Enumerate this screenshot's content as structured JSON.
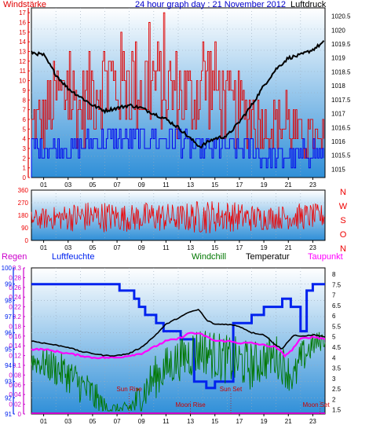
{
  "colors": {
    "wind": "#e00000",
    "gust": "#e00000",
    "wind_avg": "#0000ee",
    "pressure": "#000000",
    "direction": "#ee0000",
    "humidity": "#0022ee",
    "rain": "#cc00cc",
    "windchill": "#007700",
    "temperature": "#000000",
    "dewpoint": "#ff00ff",
    "title": "#0000cc",
    "panel_top": "#ffffff",
    "panel_bottom": "#2f8fd8"
  },
  "chart_data": [
    {
      "type": "line",
      "title": "24 hour graph day : 21 November 2012",
      "left_axis_label": "Windstärke",
      "right_axis_label": "Luftdruck",
      "x_ticks": [
        "01",
        "03",
        "05",
        "07",
        "09",
        "11",
        "13",
        "15",
        "17",
        "19",
        "21",
        "23"
      ],
      "left_ticks": [
        "0",
        "1",
        "2",
        "3",
        "4",
        "5",
        "6",
        "7",
        "8",
        "9",
        "10",
        "11",
        "12",
        "13",
        "14",
        "15",
        "16",
        "17"
      ],
      "left_range": [
        0,
        17.5
      ],
      "right_ticks": [
        "1015",
        "1015.5",
        "1016",
        "1016.5",
        "1017",
        "1017.5",
        "1018",
        "1018.5",
        "1019",
        "1019.5",
        "1020",
        "1020.5"
      ],
      "right_range": [
        1014.7,
        1020.8
      ],
      "x_range": [
        0,
        24
      ],
      "series": [
        {
          "key": "pressure",
          "axis": "right",
          "x": [
            0,
            1,
            2,
            3,
            4,
            5,
            6,
            7,
            8,
            9,
            10,
            11,
            12,
            13,
            13.8,
            14.5,
            15,
            16,
            17,
            18,
            19,
            20,
            21,
            22,
            23,
            24
          ],
          "y": [
            1019.2,
            1019.1,
            1018.4,
            1017.9,
            1017.6,
            1017.3,
            1017.1,
            1017.2,
            1017.3,
            1017.2,
            1017.0,
            1016.8,
            1016.5,
            1016.1,
            1015.8,
            1016.0,
            1016.1,
            1016.2,
            1016.7,
            1017.3,
            1018.0,
            1018.6,
            1019.0,
            1019.1,
            1019.3,
            1019.6
          ]
        },
        {
          "key": "wind_avg",
          "axis": "left",
          "x": [
            0,
            1,
            2,
            3,
            4,
            5,
            6,
            7,
            8,
            9,
            10,
            11,
            12,
            13,
            14,
            15,
            16,
            17,
            18,
            19,
            20,
            21,
            22,
            23,
            24
          ],
          "y": [
            3,
            3,
            3,
            3,
            3,
            4,
            4,
            4,
            4,
            4,
            4,
            4,
            4,
            3,
            3,
            3,
            3,
            3,
            3,
            2,
            2,
            2,
            2,
            3,
            2
          ]
        },
        {
          "key": "gust",
          "axis": "left",
          "x": [
            0,
            1,
            2,
            3,
            4,
            5,
            6,
            7,
            8,
            9,
            10,
            11,
            12,
            13,
            14,
            15,
            16,
            17,
            18,
            19,
            20,
            21,
            22,
            23,
            24
          ],
          "y": [
            8,
            9,
            12,
            13,
            10,
            14,
            15,
            14,
            15,
            14,
            15,
            13,
            13,
            12,
            15,
            14,
            11,
            10,
            10,
            8,
            8,
            8,
            6,
            6,
            4
          ]
        }
      ]
    },
    {
      "type": "line",
      "right_axis_label": [
        "N",
        "W",
        "S",
        "O",
        "N"
      ],
      "left_ticks": [
        "0",
        "90",
        "180",
        "270",
        "360"
      ],
      "left_range": [
        0,
        360
      ],
      "x_ticks": [
        "01",
        "03",
        "05",
        "07",
        "09",
        "11",
        "13",
        "15",
        "17",
        "19",
        "21",
        "23"
      ],
      "x_range": [
        0,
        24
      ],
      "series": [
        {
          "key": "direction",
          "x": [
            0,
            2,
            4,
            6,
            8,
            10,
            12,
            14,
            16,
            18,
            20,
            22,
            24
          ],
          "y": [
            150,
            160,
            170,
            170,
            160,
            170,
            160,
            170,
            175,
            160,
            165,
            170,
            175
          ],
          "spread": [
            50,
            60,
            80,
            80,
            70,
            80,
            70,
            90,
            80,
            70,
            60,
            70,
            60
          ]
        }
      ]
    },
    {
      "type": "line",
      "labels": {
        "rain": "Regen",
        "humidity": "Luftfeuchte",
        "windchill": "Windchill",
        "temperature": "Temperatur",
        "dewpoint": "Taupunkt"
      },
      "rain_ticks": [
        "0",
        "0.02",
        "0.04",
        "0.06",
        "0.08",
        "0.1",
        "0.12",
        "0.14",
        "0.16",
        "0.18",
        "0.2",
        "0.22",
        "0.24",
        "0.26",
        "0.28",
        "0.3"
      ],
      "rain_range": [
        0,
        0.3
      ],
      "humidity_ticks": [
        "91",
        "92",
        "93",
        "94",
        "95",
        "96",
        "97",
        "98",
        "99",
        "100"
      ],
      "humidity_range": [
        91,
        100
      ],
      "temp_ticks": [
        "1.5",
        "2",
        "2.5",
        "3",
        "3.5",
        "4",
        "4.5",
        "5",
        "5.5",
        "6",
        "6.5",
        "7",
        "7.5",
        "8"
      ],
      "temp_range": [
        1.3,
        8.3
      ],
      "x_ticks": [
        "01",
        "03",
        "05",
        "07",
        "09",
        "11",
        "13",
        "15",
        "17",
        "19",
        "21",
        "23"
      ],
      "x_range": [
        0,
        24
      ],
      "annotations": [
        {
          "text": "Sun Rise",
          "x": 8.0
        },
        {
          "text": "Moon Rise",
          "x": 13.0
        },
        {
          "text": "Sun Set",
          "x": 16.3
        },
        {
          "text": "Moon Set",
          "x": 23.6
        }
      ],
      "series": [
        {
          "key": "humidity",
          "axis": "humidity",
          "x": [
            0,
            7.2,
            7.2,
            8.4,
            8.4,
            8.8,
            8.8,
            9.3,
            9.3,
            10.2,
            10.2,
            10.8,
            10.8,
            12.2,
            12.2,
            13.3,
            13.3,
            14.3,
            14.3,
            15,
            15,
            16.5,
            16.5,
            18,
            18,
            19,
            19,
            20.5,
            20.5,
            21.2,
            21.2,
            22,
            22,
            22.5,
            22.5,
            23,
            23,
            24
          ],
          "y": [
            99,
            99,
            98.6,
            98.6,
            98.1,
            98.1,
            97.6,
            97.6,
            97.1,
            97.1,
            96.6,
            96.6,
            96.1,
            96.1,
            95.6,
            95.6,
            93,
            93,
            92.6,
            92.6,
            93,
            93,
            96.6,
            96.6,
            97.1,
            97.1,
            97.6,
            97.6,
            98.1,
            98.1,
            97.6,
            97.6,
            96.1,
            96.1,
            98.6,
            98.6,
            99,
            99
          ]
        },
        {
          "key": "temperature",
          "axis": "temp",
          "x": [
            0,
            1,
            2,
            3,
            4,
            5,
            6,
            7,
            8,
            9,
            10,
            11,
            12,
            13,
            13.7,
            14.3,
            15,
            16,
            17,
            18,
            19,
            20,
            20.5,
            21,
            21.5,
            22,
            23,
            24
          ],
          "y": [
            4.8,
            4.7,
            4.6,
            4.5,
            4.3,
            4.2,
            4.1,
            4.1,
            4.2,
            4.5,
            5.0,
            5.6,
            5.9,
            6.2,
            6.3,
            5.8,
            5.6,
            5.6,
            5.5,
            5.2,
            5.1,
            4.6,
            4.4,
            4.8,
            5.1,
            5.0,
            5.1,
            5.0
          ]
        },
        {
          "key": "dewpoint",
          "axis": "temp",
          "x": [
            0,
            1,
            2,
            3,
            4,
            5,
            6,
            7,
            8,
            9,
            10,
            11,
            12,
            13,
            14,
            15,
            16,
            17,
            18,
            19,
            20,
            20.7,
            21.2,
            22,
            23,
            24
          ],
          "y": [
            4.4,
            4.4,
            4.3,
            4.2,
            4.1,
            4.0,
            4.0,
            4.0,
            4.1,
            4.2,
            4.5,
            4.8,
            4.9,
            5.2,
            5.1,
            4.8,
            4.8,
            4.7,
            4.7,
            4.6,
            4.5,
            4.1,
            4.3,
            4.9,
            5.0,
            4.9
          ]
        },
        {
          "key": "windchill",
          "axis": "temp",
          "x": [
            0,
            1,
            2,
            3,
            4,
            5,
            6,
            7,
            7.5,
            8,
            8.5,
            9,
            10,
            11,
            12,
            13,
            14,
            15,
            16,
            17,
            18,
            19,
            20,
            21,
            21.5,
            22,
            23,
            24
          ],
          "y": [
            3.9,
            3.7,
            3.5,
            3.2,
            2.7,
            2.2,
            1.6,
            1.5,
            1.5,
            1.6,
            1.8,
            2.2,
            3.0,
            3.5,
            3.9,
            4.2,
            4.4,
            4.1,
            3.9,
            3.8,
            3.6,
            3.9,
            4.1,
            3.3,
            3.0,
            3.9,
            4.6,
            4.9
          ],
          "spread": [
            0.4,
            0.5,
            0.6,
            0.6,
            0.6,
            0.6,
            0.3,
            0.2,
            0.2,
            0.3,
            0.5,
            0.6,
            0.7,
            0.7,
            0.7,
            0.8,
            0.8,
            0.8,
            0.8,
            0.8,
            0.8,
            0.7,
            0.7,
            0.6,
            0.6,
            0.6,
            0.4,
            0.3
          ]
        },
        {
          "key": "rain",
          "axis": "rain",
          "x": [
            0,
            24
          ],
          "y": [
            0,
            0
          ]
        }
      ]
    }
  ]
}
